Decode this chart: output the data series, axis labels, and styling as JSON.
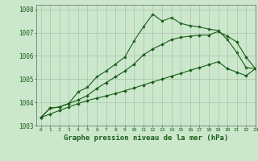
{
  "title": "Graphe pression niveau de la mer (hPa)",
  "xlim": [
    -0.5,
    23
  ],
  "ylim": [
    1003.0,
    1008.2
  ],
  "yticks": [
    1003,
    1004,
    1005,
    1006,
    1007,
    1008
  ],
  "xticks": [
    0,
    1,
    2,
    3,
    4,
    5,
    6,
    7,
    8,
    9,
    10,
    11,
    12,
    13,
    14,
    15,
    16,
    17,
    18,
    19,
    20,
    21,
    22,
    23
  ],
  "background_color": "#cce8cc",
  "grid_color": "#b0c8b0",
  "line_color": "#1a5c1a",
  "line1_x": [
    0,
    1,
    2,
    3,
    4,
    5,
    6,
    7,
    8,
    9,
    10,
    11,
    12,
    13,
    14,
    15,
    16,
    17,
    18,
    19,
    20,
    21,
    22,
    23
  ],
  "line1_y": [
    1003.35,
    1003.75,
    1003.8,
    1003.95,
    1004.45,
    1004.65,
    1005.1,
    1005.35,
    1005.65,
    1005.95,
    1006.65,
    1007.25,
    1007.8,
    1007.5,
    1007.65,
    1007.4,
    1007.3,
    1007.25,
    1007.15,
    1007.1,
    1006.7,
    1006.15,
    1005.5,
    1005.45
  ],
  "line2_x": [
    0,
    1,
    2,
    3,
    4,
    5,
    6,
    7,
    8,
    9,
    10,
    11,
    12,
    13,
    14,
    15,
    16,
    17,
    18,
    19,
    20,
    21,
    22,
    23
  ],
  "line2_y": [
    1003.35,
    1003.75,
    1003.8,
    1003.95,
    1004.1,
    1004.3,
    1004.6,
    1004.85,
    1005.1,
    1005.35,
    1005.65,
    1006.05,
    1006.3,
    1006.5,
    1006.7,
    1006.8,
    1006.85,
    1006.9,
    1006.9,
    1007.05,
    1006.85,
    1006.6,
    1005.95,
    1005.45
  ],
  "line3_x": [
    0,
    1,
    2,
    3,
    4,
    5,
    6,
    7,
    8,
    9,
    10,
    11,
    12,
    13,
    14,
    15,
    16,
    17,
    18,
    19,
    20,
    21,
    22,
    23
  ],
  "line3_y": [
    1003.35,
    1003.5,
    1003.65,
    1003.8,
    1003.95,
    1004.08,
    1004.18,
    1004.28,
    1004.38,
    1004.5,
    1004.62,
    1004.75,
    1004.88,
    1005.0,
    1005.13,
    1005.25,
    1005.38,
    1005.5,
    1005.62,
    1005.75,
    1005.45,
    1005.3,
    1005.15,
    1005.45
  ]
}
